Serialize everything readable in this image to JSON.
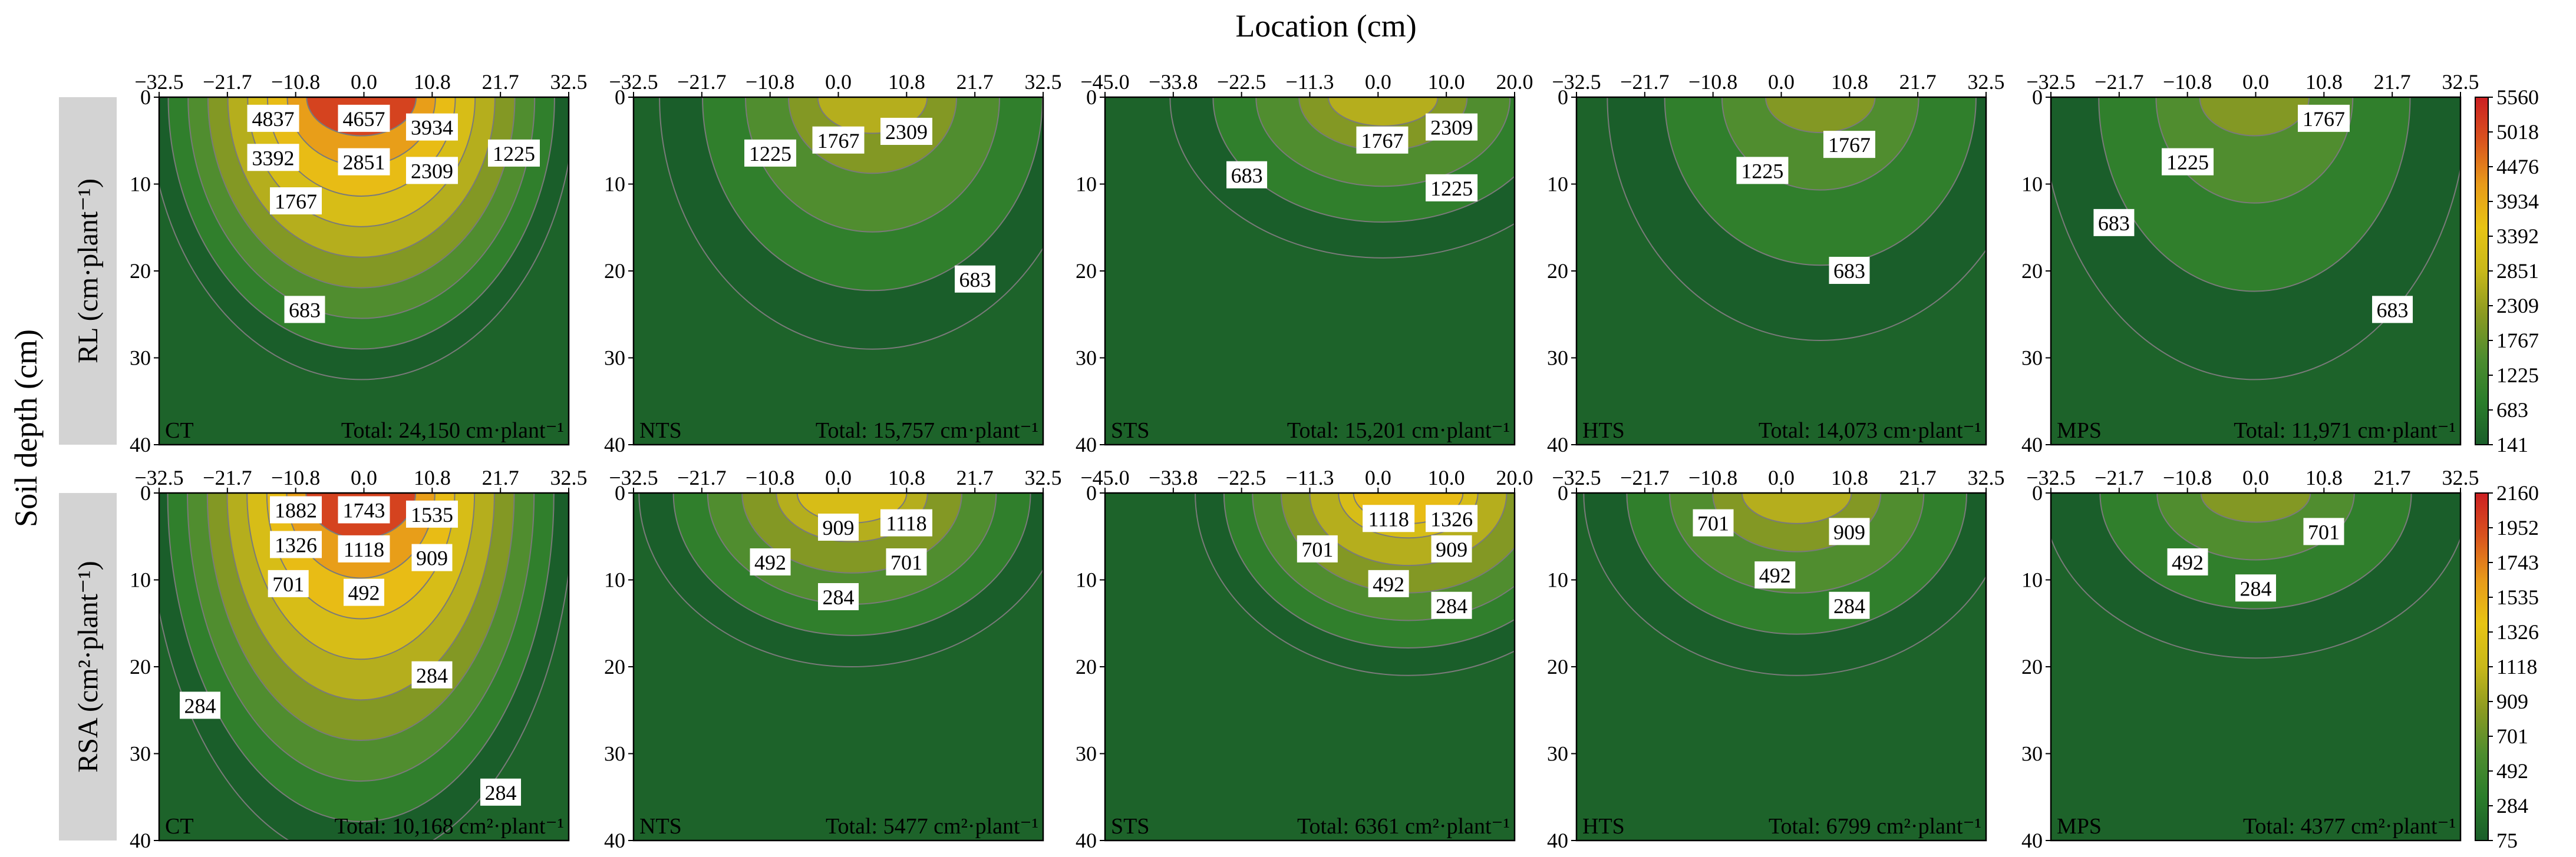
{
  "figure": {
    "top_label": "Location (cm)",
    "left_label": "Soil depth (cm)",
    "colors": {
      "row_label_bg": "#d3d3d3",
      "ramp": [
        "#1a5e2a",
        "#2b7d2b",
        "#4e8d2f",
        "#8b9a22",
        "#c9b81a",
        "#e8c414",
        "#e89a1a",
        "#d9541e",
        "#cc1f22"
      ]
    }
  },
  "chart_data": [
    {
      "row": "RL",
      "row_label": "RL (cm·plant⁻¹)",
      "type": "contour",
      "ylim": [
        40,
        0
      ],
      "y_ticks": [
        "0",
        "10",
        "20",
        "30",
        "40"
      ],
      "colorbar": {
        "ticks": [
          "5560",
          "5018",
          "4476",
          "3934",
          "3392",
          "2851",
          "2309",
          "1767",
          "1225",
          "683",
          "141"
        ],
        "range": [
          141,
          5560
        ]
      },
      "panels": [
        {
          "label": "CT",
          "total": "Total: 24,150 cm·plant⁻¹",
          "xlim": [
            -32.5,
            32.5
          ],
          "x_ticks": [
            "−32.5",
            "−21.7",
            "−10.8",
            "0.0",
            "10.8",
            "21.7",
            "32.5"
          ],
          "contour_labels": [
            {
              "text": "4837",
              "x": -14.4,
              "y": 2.5,
              "v": 4837
            },
            {
              "text": "4657",
              "x": 0.0,
              "y": 2.5,
              "v": 4657
            },
            {
              "text": "3934",
              "x": 10.8,
              "y": 3.5,
              "v": 3934
            },
            {
              "text": "3392",
              "x": -14.4,
              "y": 7.0,
              "v": 3392
            },
            {
              "text": "2851",
              "x": 0.0,
              "y": 7.5,
              "v": 2851
            },
            {
              "text": "2309",
              "x": 10.8,
              "y": 8.5,
              "v": 2309
            },
            {
              "text": "1225",
              "x": 23.8,
              "y": 6.5,
              "v": 1225
            },
            {
              "text": "1767",
              "x": -10.8,
              "y": 12.0,
              "v": 1767
            },
            {
              "text": "683",
              "x": -9.4,
              "y": 24.5,
              "v": 683
            }
          ]
        },
        {
          "label": "NTS",
          "total": "Total: 15,757 cm·plant⁻¹",
          "xlim": [
            -32.5,
            32.5
          ],
          "x_ticks": [
            "−32.5",
            "−21.7",
            "−10.8",
            "0.0",
            "10.8",
            "21.7",
            "32.5"
          ],
          "contour_labels": [
            {
              "text": "1767",
              "x": 0.0,
              "y": 5.0,
              "v": 1767
            },
            {
              "text": "2309",
              "x": 10.8,
              "y": 4.0,
              "v": 2309
            },
            {
              "text": "1225",
              "x": -10.8,
              "y": 6.5,
              "v": 1225
            },
            {
              "text": "683",
              "x": 21.7,
              "y": 21.0,
              "v": 683
            }
          ]
        },
        {
          "label": "STS",
          "total": "Total: 15,201 cm·plant⁻¹",
          "xlim": [
            -45.0,
            20.0
          ],
          "x_ticks": [
            "−45.0",
            "−33.8",
            "−22.5",
            "−11.3",
            "0.0",
            "10.0",
            "20.0"
          ],
          "contour_labels": [
            {
              "text": "1767",
              "x": -1.0,
              "y": 5.0,
              "v": 1767
            },
            {
              "text": "2309",
              "x": 10.0,
              "y": 3.5,
              "v": 2309
            },
            {
              "text": "683",
              "x": -22.5,
              "y": 9.0,
              "v": 683
            },
            {
              "text": "1225",
              "x": 10.0,
              "y": 10.5,
              "v": 1225
            }
          ]
        },
        {
          "label": "HTS",
          "total": "Total: 14,073 cm·plant⁻¹",
          "xlim": [
            -32.5,
            32.5
          ],
          "x_ticks": [
            "−32.5",
            "−21.7",
            "−10.8",
            "0.0",
            "10.8",
            "21.7",
            "32.5"
          ],
          "contour_labels": [
            {
              "text": "1767",
              "x": 10.8,
              "y": 5.5,
              "v": 1767
            },
            {
              "text": "1225",
              "x": -3.0,
              "y": 8.5,
              "v": 1225
            },
            {
              "text": "683",
              "x": 10.8,
              "y": 20.0,
              "v": 683
            }
          ]
        },
        {
          "label": "MPS",
          "total": "Total: 11,971 cm·plant⁻¹",
          "xlim": [
            -32.5,
            32.5
          ],
          "x_ticks": [
            "−32.5",
            "−21.7",
            "−10.8",
            "0.0",
            "10.8",
            "21.7",
            "32.5"
          ],
          "contour_labels": [
            {
              "text": "1767",
              "x": 10.8,
              "y": 2.5,
              "v": 1767
            },
            {
              "text": "1225",
              "x": -10.8,
              "y": 7.5,
              "v": 1225
            },
            {
              "text": "683",
              "x": -22.5,
              "y": 14.5,
              "v": 683
            },
            {
              "text": "683",
              "x": 21.7,
              "y": 24.5,
              "v": 683
            }
          ]
        }
      ]
    },
    {
      "row": "RSA",
      "row_label": "RSA (cm²·plant⁻¹)",
      "type": "contour",
      "ylim": [
        40,
        0
      ],
      "y_ticks": [
        "0",
        "10",
        "20",
        "30",
        "40"
      ],
      "colorbar": {
        "ticks": [
          "2160",
          "1952",
          "1743",
          "1535",
          "1326",
          "1118",
          "909",
          "701",
          "492",
          "284",
          "75"
        ],
        "range": [
          75,
          2160
        ]
      },
      "panels": [
        {
          "label": "CT",
          "total": "Total: 10,168 cm²·plant⁻¹",
          "xlim": [
            -32.5,
            32.5
          ],
          "x_ticks": [
            "−32.5",
            "−21.7",
            "−10.8",
            "0.0",
            "10.8",
            "21.7",
            "32.5"
          ],
          "contour_labels": [
            {
              "text": "1882",
              "x": -10.8,
              "y": 2.0,
              "v": 1882
            },
            {
              "text": "1743",
              "x": 0.0,
              "y": 2.0,
              "v": 1743
            },
            {
              "text": "1535",
              "x": 10.8,
              "y": 2.5,
              "v": 1535
            },
            {
              "text": "1326",
              "x": -10.8,
              "y": 6.0,
              "v": 1326
            },
            {
              "text": "1118",
              "x": 0.0,
              "y": 6.5,
              "v": 1118
            },
            {
              "text": "909",
              "x": 10.8,
              "y": 7.5,
              "v": 909
            },
            {
              "text": "701",
              "x": -12.0,
              "y": 10.5,
              "v": 701
            },
            {
              "text": "492",
              "x": 0.0,
              "y": 11.5,
              "v": 492
            },
            {
              "text": "284",
              "x": 10.8,
              "y": 21.0,
              "v": 284
            },
            {
              "text": "284",
              "x": -26.0,
              "y": 24.5,
              "v": 284
            },
            {
              "text": "284",
              "x": 21.7,
              "y": 34.5,
              "v": 284
            }
          ]
        },
        {
          "label": "NTS",
          "total": "Total: 5477 cm²·plant⁻¹",
          "xlim": [
            -32.5,
            32.5
          ],
          "x_ticks": [
            "−32.5",
            "−21.7",
            "−10.8",
            "0.0",
            "10.8",
            "21.7",
            "32.5"
          ],
          "contour_labels": [
            {
              "text": "909",
              "x": 0.0,
              "y": 4.0,
              "v": 909
            },
            {
              "text": "1118",
              "x": 10.8,
              "y": 3.5,
              "v": 1118
            },
            {
              "text": "492",
              "x": -10.8,
              "y": 8.0,
              "v": 492
            },
            {
              "text": "701",
              "x": 10.8,
              "y": 8.0,
              "v": 701
            },
            {
              "text": "284",
              "x": 0.0,
              "y": 12.0,
              "v": 284
            }
          ]
        },
        {
          "label": "STS",
          "total": "Total: 6361 cm²·plant⁻¹",
          "xlim": [
            -45.0,
            20.0
          ],
          "x_ticks": [
            "−45.0",
            "−33.8",
            "−22.5",
            "−11.3",
            "0.0",
            "10.0",
            "20.0"
          ],
          "contour_labels": [
            {
              "text": "1118",
              "x": 0.0,
              "y": 3.0,
              "v": 1118
            },
            {
              "text": "1326",
              "x": 10.0,
              "y": 3.0,
              "v": 1326
            },
            {
              "text": "701",
              "x": -11.3,
              "y": 6.5,
              "v": 701
            },
            {
              "text": "909",
              "x": 10.0,
              "y": 6.5,
              "v": 909
            },
            {
              "text": "492",
              "x": 0.0,
              "y": 10.5,
              "v": 492
            },
            {
              "text": "284",
              "x": 10.0,
              "y": 13.0,
              "v": 284
            }
          ]
        },
        {
          "label": "HTS",
          "total": "Total: 6799 cm²·plant⁻¹",
          "xlim": [
            -32.5,
            32.5
          ],
          "x_ticks": [
            "−32.5",
            "−21.7",
            "−10.8",
            "0.0",
            "10.8",
            "21.7",
            "32.5"
          ],
          "contour_labels": [
            {
              "text": "701",
              "x": -10.8,
              "y": 3.5,
              "v": 701
            },
            {
              "text": "909",
              "x": 10.8,
              "y": 4.5,
              "v": 909
            },
            {
              "text": "492",
              "x": -1.0,
              "y": 9.5,
              "v": 492
            },
            {
              "text": "284",
              "x": 10.8,
              "y": 13.0,
              "v": 284
            }
          ]
        },
        {
          "label": "MPS",
          "total": "Total: 4377 cm²·plant⁻¹",
          "xlim": [
            -32.5,
            32.5
          ],
          "x_ticks": [
            "−32.5",
            "−21.7",
            "−10.8",
            "0.0",
            "10.8",
            "21.7",
            "32.5"
          ],
          "contour_labels": [
            {
              "text": "701",
              "x": 10.8,
              "y": 4.5,
              "v": 701
            },
            {
              "text": "492",
              "x": -10.8,
              "y": 8.0,
              "v": 492
            },
            {
              "text": "284",
              "x": 0.0,
              "y": 11.0,
              "v": 284
            }
          ]
        }
      ]
    }
  ]
}
